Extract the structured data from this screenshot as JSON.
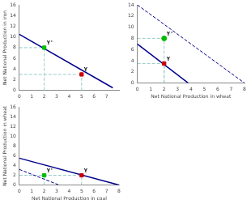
{
  "chart_data": [
    {
      "type": "line",
      "ylabel": "Net National Production in iron",
      "xlim": [
        0,
        8
      ],
      "ylim": [
        0,
        16
      ],
      "xticks": [
        0,
        1,
        2,
        3,
        4,
        5,
        6,
        7
      ],
      "yticks": [
        0,
        2,
        4,
        6,
        8,
        10,
        12,
        14,
        16
      ],
      "grid": false,
      "series": [
        {
          "x": [
            0,
            7.5
          ],
          "values": [
            10.5,
            0.5
          ],
          "color": "#00008B",
          "line_style": "solid"
        },
        {
          "x": [
            0,
            2
          ],
          "values": [
            8,
            8
          ],
          "color": "#99CCCC",
          "line_style": "dashed"
        },
        {
          "x": [
            2,
            2
          ],
          "values": [
            0,
            8
          ],
          "color": "#99CCCC",
          "line_style": "dashed"
        },
        {
          "x": [
            0,
            5
          ],
          "values": [
            3,
            3
          ],
          "color": "#99CCCC",
          "line_style": "dashed"
        },
        {
          "x": [
            5,
            5
          ],
          "values": [
            0,
            3
          ],
          "color": "#99CCCC",
          "line_style": "dashed"
        },
        {
          "type": "scatter",
          "x": [
            2
          ],
          "values": [
            8
          ],
          "color": "#00BB00",
          "marker": "square"
        },
        {
          "type": "scatter",
          "x": [
            5
          ],
          "values": [
            3
          ],
          "color": "#CC0000",
          "marker": "square"
        }
      ],
      "annotations": [
        {
          "text": "Y'",
          "x": 2,
          "y": 8
        },
        {
          "text": "Y",
          "x": 5,
          "y": 3
        }
      ]
    },
    {
      "type": "line",
      "xlabel": "Net National Production in wheat",
      "xlim": [
        0,
        8
      ],
      "ylim": [
        0,
        14
      ],
      "xticks": [
        0,
        1,
        2,
        3,
        4,
        5,
        6,
        7,
        8
      ],
      "yticks": [
        0,
        2,
        4,
        6,
        8,
        10,
        12,
        14
      ],
      "grid": false,
      "series": [
        {
          "x": [
            0,
            8.0
          ],
          "values": [
            14.0,
            0.0
          ],
          "color": "#00008B",
          "line_style": "dashed"
        },
        {
          "x": [
            0,
            3.8
          ],
          "values": [
            7.0,
            0.0
          ],
          "color": "#00008B",
          "line_style": "solid"
        },
        {
          "x": [
            0,
            2
          ],
          "values": [
            8,
            8
          ],
          "color": "#99CCCC",
          "line_style": "dashed"
        },
        {
          "x": [
            2,
            2
          ],
          "values": [
            0,
            8
          ],
          "color": "#99CCCC",
          "line_style": "dashed"
        },
        {
          "x": [
            0,
            2
          ],
          "values": [
            3.5,
            3.5
          ],
          "color": "#99CCCC",
          "line_style": "dashed"
        },
        {
          "x": [
            2,
            2
          ],
          "values": [
            0,
            3.5
          ],
          "color": "#99CCCC",
          "line_style": "dashed"
        },
        {
          "type": "scatter",
          "x": [
            2
          ],
          "values": [
            8
          ],
          "color": "#00BB00",
          "marker": "circle"
        },
        {
          "type": "scatter",
          "x": [
            2
          ],
          "values": [
            3.5
          ],
          "color": "#CC0000",
          "marker": "square"
        }
      ],
      "annotations": [
        {
          "text": "Y'",
          "x": 2,
          "y": 8
        },
        {
          "text": "Y",
          "x": 2,
          "y": 3.5
        }
      ]
    },
    {
      "type": "line",
      "xlabel": "Net National Production in coal",
      "ylabel": "Net National Production in wheat",
      "xlim": [
        0,
        8
      ],
      "ylim": [
        0,
        16
      ],
      "xticks": [
        0,
        1,
        2,
        3,
        4,
        5,
        6,
        7,
        8
      ],
      "yticks": [
        0,
        2,
        4,
        6,
        8,
        10,
        12,
        14,
        16
      ],
      "grid": false,
      "series": [
        {
          "x": [
            0,
            8.0
          ],
          "values": [
            5.5,
            0.0
          ],
          "color": "#00008B",
          "line_style": "solid"
        },
        {
          "x": [
            0,
            3.2
          ],
          "values": [
            3.2,
            0.0
          ],
          "color": "#00008B",
          "line_style": "dashed"
        },
        {
          "x": [
            0,
            2
          ],
          "values": [
            2,
            2
          ],
          "color": "#99CCCC",
          "line_style": "dashed"
        },
        {
          "x": [
            2,
            2
          ],
          "values": [
            0,
            2
          ],
          "color": "#99CCCC",
          "line_style": "dashed"
        },
        {
          "x": [
            0,
            5
          ],
          "values": [
            2,
            2
          ],
          "color": "#99CCCC",
          "line_style": "dashed"
        },
        {
          "x": [
            5,
            5
          ],
          "values": [
            0,
            2
          ],
          "color": "#99CCCC",
          "line_style": "dashed"
        },
        {
          "type": "scatter",
          "x": [
            2
          ],
          "values": [
            2
          ],
          "color": "#00BB00",
          "marker": "square"
        },
        {
          "type": "scatter",
          "x": [
            5
          ],
          "values": [
            2
          ],
          "color": "#CC0000",
          "marker": "square"
        }
      ],
      "annotations": [
        {
          "text": "Y'",
          "x": 2,
          "y": 2
        },
        {
          "text": "Y",
          "x": 5,
          "y": 2
        }
      ]
    }
  ]
}
